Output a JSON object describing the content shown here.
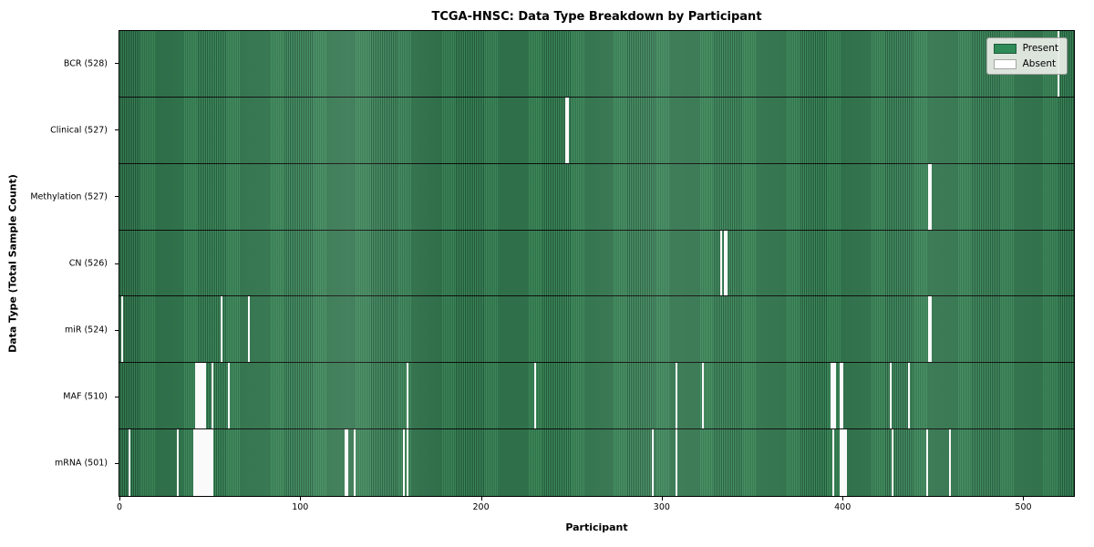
{
  "chart_data": {
    "type": "heatmap",
    "title": "TCGA-HNSC: Data Type Breakdown by Participant",
    "xlabel": "Participant",
    "ylabel": "Data Type (Total Sample Count)",
    "n_participants": 529,
    "x_ticks": [
      0,
      100,
      200,
      300,
      400,
      500
    ],
    "legend": [
      {
        "label": "Present",
        "color": "#2e8b57"
      },
      {
        "label": "Absent",
        "color": "#ffffff"
      }
    ],
    "present_color": "#2e8b57",
    "absent_color": "#ffffff",
    "rows": [
      {
        "label": "BCR (528)",
        "count": 528,
        "absent": [
          520
        ]
      },
      {
        "label": "Clinical (527)",
        "count": 527,
        "absent": [
          247,
          248
        ]
      },
      {
        "label": "Methylation (527)",
        "count": 527,
        "absent": [
          448,
          449
        ]
      },
      {
        "label": "CN (526)",
        "count": 526,
        "absent": [
          333,
          335,
          336
        ]
      },
      {
        "label": "miR (524)",
        "count": 524,
        "absent": [
          1,
          56,
          71,
          448,
          449
        ]
      },
      {
        "label": "MAF (510)",
        "count": 510,
        "absent": [
          42,
          43,
          44,
          45,
          46,
          47,
          51,
          60,
          159,
          230,
          308,
          323,
          394,
          395,
          396,
          399,
          400,
          427,
          437
        ]
      },
      {
        "label": "mRNA (501)",
        "count": 501,
        "absent": [
          5,
          32,
          41,
          42,
          43,
          44,
          45,
          46,
          47,
          48,
          49,
          50,
          51,
          125,
          126,
          130,
          157,
          159,
          295,
          308,
          395,
          399,
          400,
          401,
          402,
          428,
          447,
          460
        ]
      }
    ]
  }
}
